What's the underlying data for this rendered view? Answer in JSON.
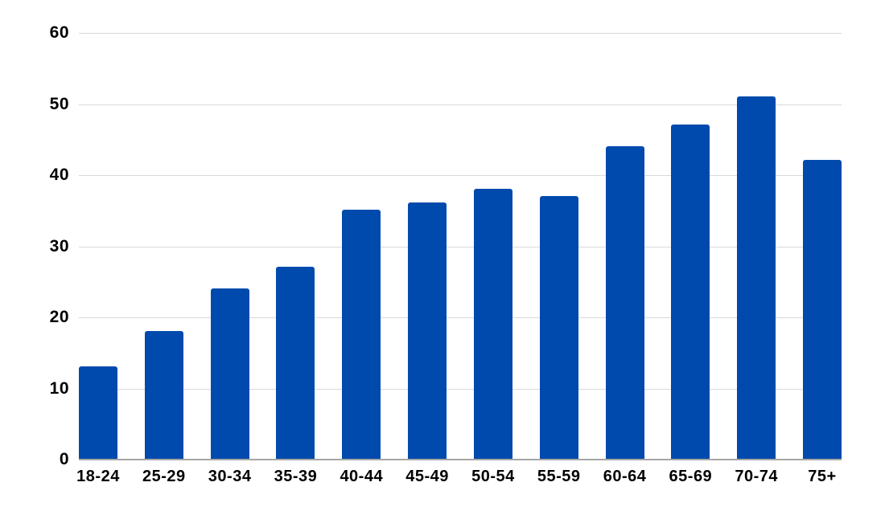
{
  "chart_data": {
    "type": "bar",
    "categories": [
      "18-24",
      "25-29",
      "30-34",
      "35-39",
      "40-44",
      "45-49",
      "50-54",
      "55-59",
      "60-64",
      "65-69",
      "70-74",
      "75+"
    ],
    "values": [
      13,
      18,
      24,
      27,
      35,
      36,
      38,
      37,
      44,
      47,
      51,
      42
    ],
    "title": "",
    "xlabel": "",
    "ylabel": "",
    "ylim": [
      0,
      60
    ],
    "yticks": [
      0,
      10,
      20,
      30,
      40,
      50,
      60
    ],
    "grid": true,
    "legend": "none",
    "bar_color": "#004aad",
    "gridline_color": "#d9d9d9",
    "axis_line_color": "#a6a6a6",
    "label_color": "#000000",
    "background_color": "#ffffff"
  }
}
